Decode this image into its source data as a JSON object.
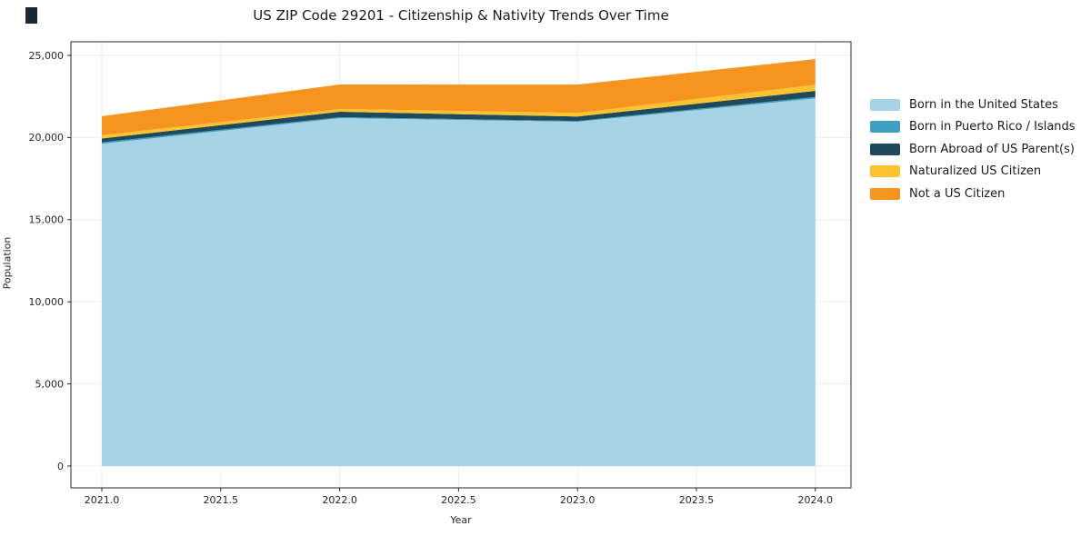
{
  "window": {
    "background": "#ffffff",
    "artifact_mark_color": "#1a2a33"
  },
  "chart_data": {
    "type": "area",
    "stacked": true,
    "title": "US ZIP Code 29201 - Citizenship & Nativity Trends Over Time",
    "xlabel": "Year",
    "ylabel": "Population",
    "x": [
      2021,
      2022,
      2023,
      2024
    ],
    "series": [
      {
        "name": "Born in the United States",
        "color": "#a6d4e6",
        "values": [
          19620,
          21180,
          20960,
          22380
        ]
      },
      {
        "name": "Born in Puerto Rico / Islands",
        "color": "#3d9fc2",
        "values": [
          90,
          60,
          50,
          90
        ]
      },
      {
        "name": "Born Abroad of US Parent(s)",
        "color": "#20495c",
        "values": [
          230,
          330,
          270,
          370
        ]
      },
      {
        "name": "Naturalized US Citizen",
        "color": "#fdc330",
        "values": [
          210,
          170,
          220,
          370
        ]
      },
      {
        "name": "Not a US Citizen",
        "color": "#f7941f",
        "values": [
          1150,
          1490,
          1720,
          1570
        ]
      }
    ],
    "totals": [
      21300,
      23230,
      23220,
      24780
    ],
    "x_ticks": [
      "2021.0",
      "2021.5",
      "2022.0",
      "2022.5",
      "2023.0",
      "2023.5",
      "2024.0"
    ],
    "x_tick_values": [
      2021,
      2021.5,
      2022,
      2022.5,
      2023,
      2023.5,
      2024
    ],
    "y_ticks": [
      "0",
      "5,000",
      "10,000",
      "15,000",
      "20,000",
      "25,000"
    ],
    "y_tick_values": [
      0,
      5000,
      10000,
      15000,
      20000,
      25000
    ],
    "xlim": [
      2020.87,
      2024.15
    ],
    "ylim": [
      -1330,
      25830
    ],
    "grid": true,
    "grid_color": "#e8ebef",
    "spine_color": "#262626",
    "tick_text_color": "#262626",
    "legend_position": "right",
    "legend_frame": false
  }
}
